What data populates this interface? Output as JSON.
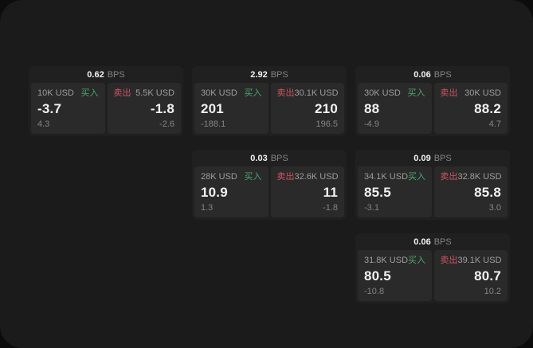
{
  "bps_unit": "BPS",
  "labels": {
    "buy": "买入",
    "sell": "卖出"
  },
  "colors": {
    "page_bg": "#0c0c0c",
    "container_bg": "#1b1b1b",
    "card_bg": "#202020",
    "panel_bg": "#2a2a2a",
    "buy_green": "#4aa570",
    "sell_red": "#d05263",
    "text_primary": "#f2f2f2",
    "text_secondary": "#9e9e9e",
    "text_muted": "#848484"
  },
  "cards": [
    {
      "bps": "0.62",
      "buy": {
        "size": "10K USD",
        "label": "买入",
        "main": "-3.7",
        "sub": "4.3"
      },
      "sell": {
        "label": "卖出",
        "size": "5.5K USD",
        "main": "-1.8",
        "sub": "-2.6"
      }
    },
    {
      "bps": "2.92",
      "buy": {
        "size": "30K USD",
        "label": "买入",
        "main": "201",
        "sub": "-188.1"
      },
      "sell": {
        "label": "卖出",
        "size": "30.1K USD",
        "main": "210",
        "sub": "196.5"
      }
    },
    {
      "bps": "0.06",
      "buy": {
        "size": "30K USD",
        "label": "买入",
        "main": "88",
        "sub": "-4.9"
      },
      "sell": {
        "label": "卖出",
        "size": "30K USD",
        "main": "88.2",
        "sub": "4.7"
      }
    },
    {
      "bps": "0.03",
      "buy": {
        "size": "28K USD",
        "label": "买入",
        "main": "10.9",
        "sub": "1.3"
      },
      "sell": {
        "label": "卖出",
        "size": "32.6K USD",
        "main": "11",
        "sub": "-1.8"
      }
    },
    {
      "bps": "0.09",
      "buy": {
        "size": "34.1K USD",
        "label": "买入",
        "main": "85.5",
        "sub": "-3.1"
      },
      "sell": {
        "label": "卖出",
        "size": "32.8K USD",
        "main": "85.8",
        "sub": "3.0"
      }
    },
    {
      "bps": "0.06",
      "buy": {
        "size": "31.8K USD",
        "label": "买入",
        "main": "80.5",
        "sub": "-10.8"
      },
      "sell": {
        "label": "卖出",
        "size": "39.1K USD",
        "main": "80.7",
        "sub": "10.2"
      }
    }
  ]
}
